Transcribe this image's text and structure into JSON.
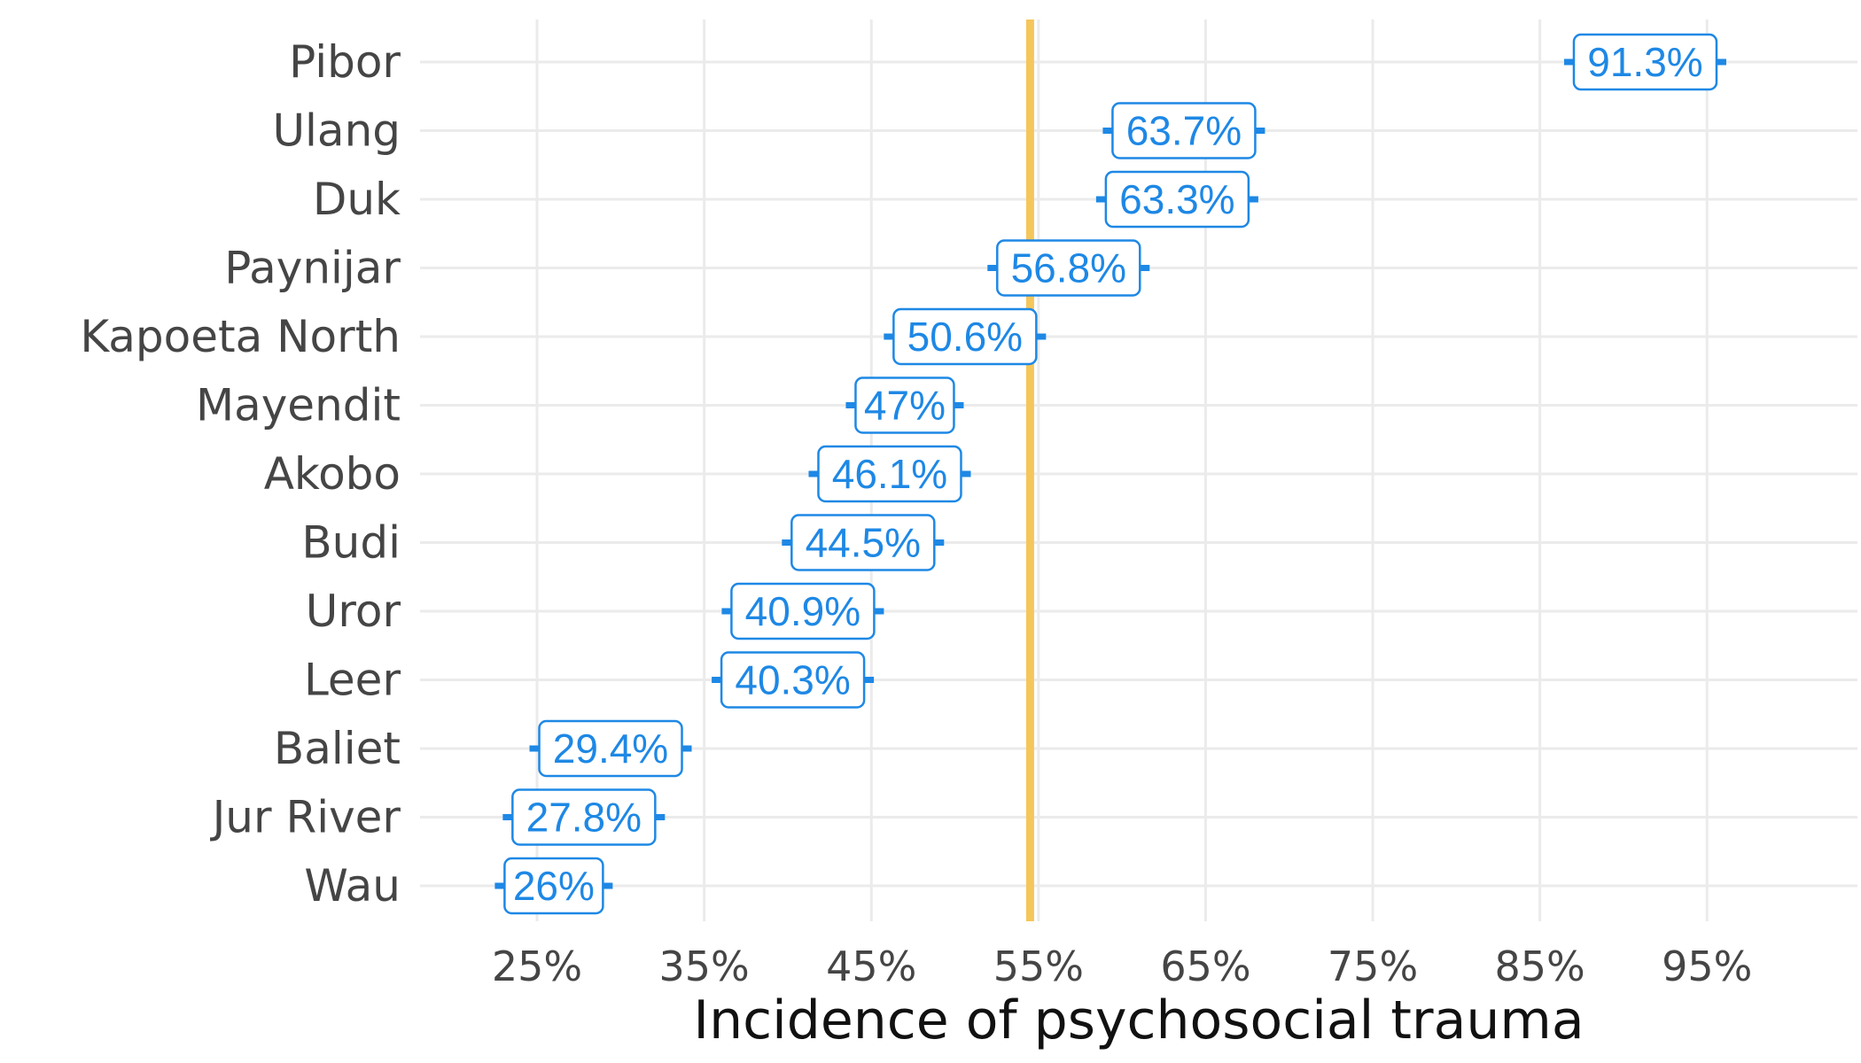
{
  "chart_data": {
    "type": "scatter",
    "categories": [
      "Pibor",
      "Ulang",
      "Duk",
      "Paynijar",
      "Kapoeta North",
      "Mayendit",
      "Akobo",
      "Budi",
      "Uror",
      "Leer",
      "Baliet",
      "Jur River",
      "Wau"
    ],
    "values": [
      91.3,
      63.7,
      63.3,
      56.8,
      50.6,
      47,
      46.1,
      44.5,
      40.9,
      40.3,
      29.4,
      27.8,
      26
    ],
    "data_labels": [
      "91.3%",
      "63.7%",
      "63.3%",
      "56.8%",
      "50.6%",
      "47%",
      "46.1%",
      "44.5%",
      "40.9%",
      "40.3%",
      "29.4%",
      "27.8%",
      "26%"
    ],
    "xlabel": "Incidence of psychosocial trauma",
    "ylabel": "",
    "xlim": [
      18,
      104
    ],
    "x_ticks": [
      25,
      35,
      45,
      55,
      65,
      75,
      85,
      95
    ],
    "x_tick_labels": [
      "25%",
      "35%",
      "45%",
      "55%",
      "65%",
      "75%",
      "85%",
      "95%"
    ],
    "reference_line": {
      "value": 54.5,
      "color": "#F5C65A"
    },
    "grid": true,
    "legend": "none",
    "colors": {
      "label": "#1E88E5",
      "grid": "#EBEBEB",
      "text": "#454545"
    }
  }
}
